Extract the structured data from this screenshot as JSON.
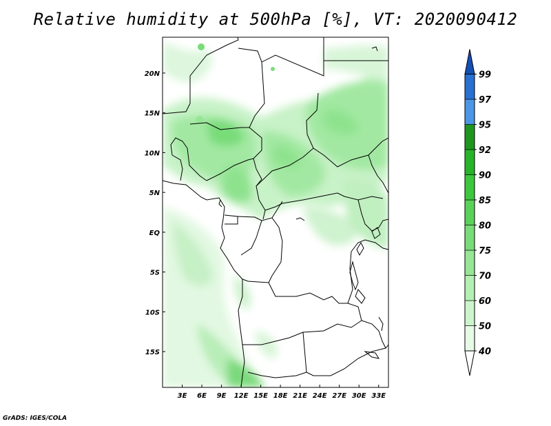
{
  "title": "Relative humidity at 500hPa [%], VT: 2020090412",
  "credit": "GrADS: IGES/COLA",
  "map": {
    "lon_range": [
      0,
      34.5
    ],
    "lat_range": [
      -19.5,
      24.5
    ],
    "lon_ticks": [
      "3E",
      "6E",
      "9E",
      "12E",
      "15E",
      "18E",
      "21E",
      "24E",
      "27E",
      "30E",
      "33E"
    ],
    "lat_ticks": [
      "20N",
      "15N",
      "10N",
      "5N",
      "EQ",
      "5S",
      "10S",
      "15S"
    ]
  },
  "colorbar": {
    "levels": [
      "40",
      "50",
      "60",
      "70",
      "75",
      "80",
      "85",
      "90",
      "92",
      "95",
      "97",
      "99"
    ],
    "colors": [
      "#ffffff",
      "#e6fae6",
      "#cdf5cd",
      "#b4f0b4",
      "#96e696",
      "#78dc78",
      "#5ad25a",
      "#3cc83c",
      "#28b428",
      "#1e961e",
      "#4b96e6",
      "#2870d2",
      "#1450b4"
    ]
  }
}
